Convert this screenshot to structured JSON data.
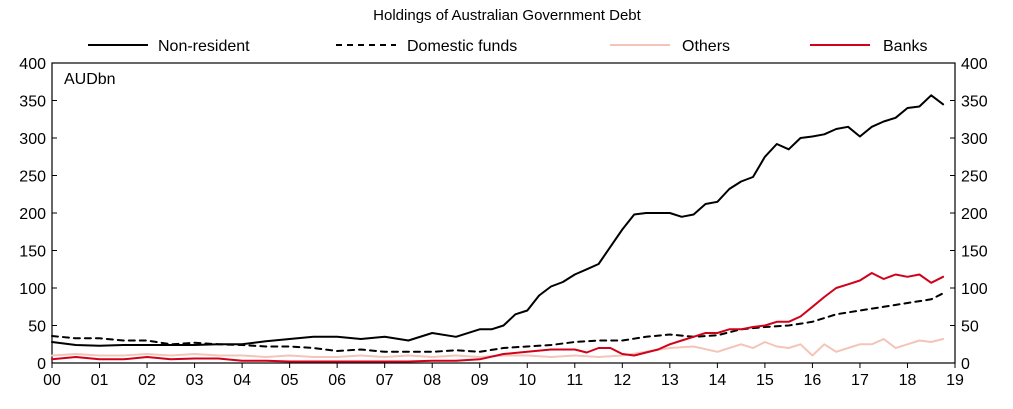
{
  "chart_data": {
    "type": "line",
    "title": "Holdings of Australian Government Debt",
    "unit": "AUDbn",
    "ylim": [
      0,
      400
    ],
    "yticks": [
      0,
      50,
      100,
      150,
      200,
      250,
      300,
      350,
      400
    ],
    "xlim": [
      2000,
      2019
    ],
    "xticks": [
      "00",
      "01",
      "02",
      "03",
      "04",
      "05",
      "06",
      "07",
      "08",
      "09",
      "10",
      "11",
      "12",
      "13",
      "14",
      "15",
      "16",
      "17",
      "18",
      "19"
    ],
    "grid": false,
    "legend_position": "top",
    "series": [
      {
        "name": "Non-resident",
        "color": "#000000",
        "dash": "solid",
        "x": [
          2000.0,
          2000.5,
          2001.0,
          2001.5,
          2002.0,
          2002.5,
          2003.0,
          2003.5,
          2004.0,
          2004.5,
          2005.0,
          2005.5,
          2006.0,
          2006.5,
          2007.0,
          2007.5,
          2008.0,
          2008.5,
          2009.0,
          2009.25,
          2009.5,
          2009.75,
          2010.0,
          2010.25,
          2010.5,
          2010.75,
          2011.0,
          2011.25,
          2011.5,
          2011.75,
          2012.0,
          2012.25,
          2012.5,
          2012.75,
          2013.0,
          2013.25,
          2013.5,
          2013.75,
          2014.0,
          2014.25,
          2014.5,
          2014.75,
          2015.0,
          2015.25,
          2015.5,
          2015.75,
          2016.0,
          2016.25,
          2016.5,
          2016.75,
          2017.0,
          2017.25,
          2017.5,
          2017.75,
          2018.0,
          2018.25,
          2018.5,
          2018.75
        ],
        "values": [
          28,
          24,
          23,
          24,
          24,
          24,
          24,
          25,
          25,
          29,
          32,
          35,
          35,
          32,
          35,
          30,
          40,
          35,
          45,
          45,
          50,
          65,
          70,
          90,
          102,
          108,
          118,
          125,
          132,
          155,
          178,
          198,
          200,
          200,
          200,
          195,
          198,
          212,
          215,
          232,
          242,
          248,
          275,
          292,
          285,
          300,
          302,
          305,
          312,
          315,
          302,
          315,
          322,
          327,
          340,
          342,
          357,
          345
        ]
      },
      {
        "name": "Domestic funds",
        "color": "#000000",
        "dash": "dashed",
        "x": [
          2000.0,
          2000.5,
          2001.0,
          2001.5,
          2002.0,
          2002.5,
          2003.0,
          2003.5,
          2004.0,
          2004.5,
          2005.0,
          2005.5,
          2006.0,
          2006.5,
          2007.0,
          2007.5,
          2008.0,
          2008.5,
          2009.0,
          2009.5,
          2010.0,
          2010.5,
          2011.0,
          2011.5,
          2012.0,
          2012.5,
          2013.0,
          2013.5,
          2014.0,
          2014.5,
          2015.0,
          2015.5,
          2016.0,
          2016.5,
          2017.0,
          2017.5,
          2018.0,
          2018.5,
          2018.75
        ],
        "values": [
          36,
          33,
          33,
          30,
          30,
          25,
          27,
          25,
          24,
          22,
          22,
          20,
          16,
          18,
          15,
          15,
          15,
          17,
          15,
          20,
          22,
          24,
          28,
          30,
          30,
          35,
          38,
          35,
          37,
          45,
          48,
          50,
          55,
          65,
          70,
          75,
          80,
          85,
          93
        ]
      },
      {
        "name": "Others",
        "color": "#f5c4b8",
        "dash": "solid",
        "x": [
          2000.0,
          2000.5,
          2001.0,
          2001.5,
          2002.0,
          2002.5,
          2003.0,
          2003.5,
          2004.0,
          2004.5,
          2005.0,
          2005.5,
          2006.0,
          2006.5,
          2007.0,
          2007.5,
          2008.0,
          2008.5,
          2009.0,
          2009.5,
          2010.0,
          2010.5,
          2011.0,
          2011.5,
          2012.0,
          2012.5,
          2013.0,
          2013.5,
          2014.0,
          2014.25,
          2014.5,
          2014.75,
          2015.0,
          2015.25,
          2015.5,
          2015.75,
          2016.0,
          2016.25,
          2016.5,
          2016.75,
          2017.0,
          2017.25,
          2017.5,
          2017.75,
          2018.0,
          2018.25,
          2018.5,
          2018.75
        ],
        "values": [
          10,
          12,
          10,
          10,
          12,
          10,
          12,
          10,
          10,
          8,
          10,
          8,
          8,
          10,
          8,
          10,
          8,
          10,
          8,
          10,
          10,
          8,
          10,
          8,
          10,
          15,
          20,
          22,
          15,
          20,
          25,
          20,
          28,
          22,
          20,
          25,
          10,
          25,
          15,
          20,
          25,
          25,
          32,
          20,
          25,
          30,
          28,
          32
        ]
      },
      {
        "name": "Banks",
        "color": "#d0021b",
        "dash": "solid",
        "x": [
          2000.0,
          2000.5,
          2001.0,
          2001.5,
          2002.0,
          2002.5,
          2003.0,
          2003.5,
          2004.0,
          2004.5,
          2005.0,
          2005.5,
          2006.0,
          2006.5,
          2007.0,
          2007.5,
          2008.0,
          2008.5,
          2009.0,
          2009.5,
          2010.0,
          2010.5,
          2011.0,
          2011.25,
          2011.5,
          2011.75,
          2012.0,
          2012.25,
          2012.5,
          2012.75,
          2013.0,
          2013.25,
          2013.5,
          2013.75,
          2014.0,
          2014.25,
          2014.5,
          2014.75,
          2015.0,
          2015.25,
          2015.5,
          2015.75,
          2016.0,
          2016.25,
          2016.5,
          2016.75,
          2017.0,
          2017.25,
          2017.5,
          2017.75,
          2018.0,
          2018.25,
          2018.5,
          2018.75
        ],
        "values": [
          5,
          8,
          5,
          5,
          8,
          5,
          6,
          6,
          3,
          3,
          2,
          2,
          2,
          2,
          2,
          2,
          3,
          3,
          5,
          12,
          15,
          18,
          18,
          14,
          20,
          20,
          12,
          10,
          14,
          18,
          25,
          30,
          35,
          40,
          40,
          45,
          45,
          48,
          50,
          55,
          55,
          62,
          75,
          88,
          100,
          105,
          110,
          120,
          112,
          118,
          115,
          118,
          107,
          115
        ]
      }
    ]
  }
}
